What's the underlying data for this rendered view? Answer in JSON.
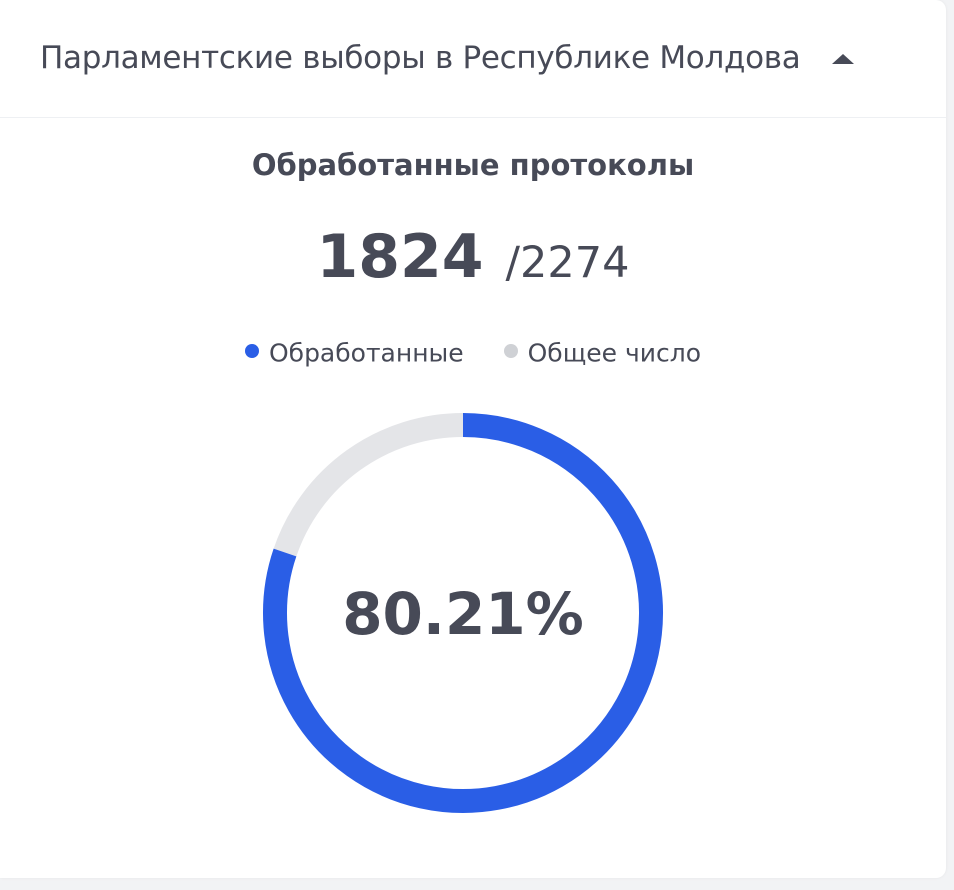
{
  "header": {
    "title": "Парламентские выборы в Республике Молдова",
    "toggle_icon": "caret-up-icon"
  },
  "section": {
    "title": "Обработанные протоколы",
    "processed": "1824",
    "total_label": "/2274"
  },
  "legend": [
    {
      "label": "Обработанные",
      "color": "#2a5ee6"
    },
    {
      "label": "Общее число",
      "color": "#cfd1d5"
    }
  ],
  "colors": {
    "processed": "#2a5ee6",
    "remaining": "#e4e5e8",
    "text": "#474a57"
  },
  "chart_data": {
    "type": "pie",
    "categories": [
      "Обработанные",
      "Общее число"
    ],
    "values": [
      1824,
      450
    ],
    "total": 2274,
    "center_label": "80.21%"
  }
}
